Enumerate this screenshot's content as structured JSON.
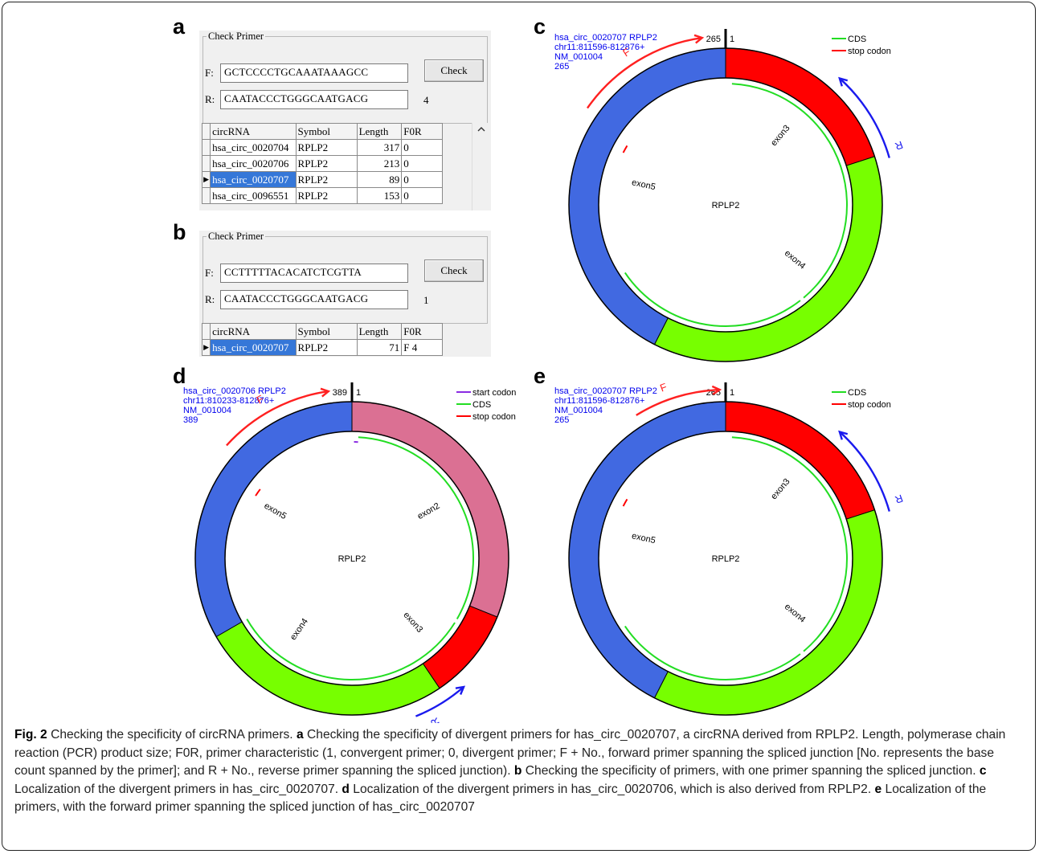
{
  "panels": {
    "a": "a",
    "b": "b",
    "c": "c",
    "d": "d",
    "e": "e"
  },
  "check_primer": {
    "group_title": "Check Primer",
    "forward_label": "F:",
    "reverse_label": "R:",
    "check_button": "Check",
    "columns": [
      "circRNA",
      "Symbol",
      "Length",
      "F0R"
    ]
  },
  "panel_a": {
    "forward_seq": "GCTCCCCTGCAAATAAAGCC",
    "reverse_seq": "CAATACCCTGGGCAATGACG",
    "hit_count": "4",
    "rows": [
      {
        "circ": "hsa_circ_0020704",
        "symbol": "RPLP2",
        "length": "317",
        "f0r": "0",
        "selected": false
      },
      {
        "circ": "hsa_circ_0020706",
        "symbol": "RPLP2",
        "length": "213",
        "f0r": "0",
        "selected": false
      },
      {
        "circ": "hsa_circ_0020707",
        "symbol": "RPLP2",
        "length": "89",
        "f0r": "0",
        "selected": true
      },
      {
        "circ": "hsa_circ_0096551",
        "symbol": "RPLP2",
        "length": "153",
        "f0r": "0",
        "selected": false
      }
    ]
  },
  "panel_b": {
    "forward_seq": "CCTTTTTACACATCTCGTTA",
    "reverse_seq": "CAATACCCTGGGCAATGACG",
    "hit_count": "1",
    "rows": [
      {
        "circ": "hsa_circ_0020707",
        "symbol": "RPLP2",
        "length": "71",
        "f0r": "F 4",
        "selected": true
      }
    ]
  },
  "circles": {
    "c": {
      "info": [
        "hsa_circ_0020707  RPLP2",
        "chr11:811596-812876+",
        "NM_001004",
        "265"
      ],
      "start_label": "265",
      "end_label": "1",
      "center": "RPLP2",
      "legend": [
        {
          "label": "CDS",
          "color": "#22dd22"
        },
        {
          "label": "stop codon",
          "color": "#ff0000"
        }
      ],
      "exons": [
        {
          "name": "exon3",
          "color": "#ff0000"
        },
        {
          "name": "exon4",
          "color": "#77ff00"
        },
        {
          "name": "exon5",
          "color": "#4169e1"
        }
      ],
      "primer_f": "F",
      "primer_r": "R"
    },
    "d": {
      "info": [
        "hsa_circ_0020706  RPLP2",
        "chr11:810233-812876+",
        "NM_001004",
        "389"
      ],
      "start_label": "389",
      "end_label": "1",
      "center": "RPLP2",
      "legend": [
        {
          "label": "start codon",
          "color": "#8a2be2"
        },
        {
          "label": "CDS",
          "color": "#22dd22"
        },
        {
          "label": "stop codon",
          "color": "#ff0000"
        }
      ],
      "exons": [
        {
          "name": "exon2",
          "color": "#db7093"
        },
        {
          "name": "exon3",
          "color": "#ff0000"
        },
        {
          "name": "exon4",
          "color": "#77ff00"
        },
        {
          "name": "exon5",
          "color": "#4169e1"
        }
      ],
      "primer_f": "F",
      "primer_r": "R"
    },
    "e": {
      "info": [
        "hsa_circ_0020707  RPLP2",
        "chr11:811596-812876+",
        "NM_001004",
        "265"
      ],
      "start_label": "265",
      "end_label": "1",
      "center": "RPLP2",
      "legend": [
        {
          "label": "CDS",
          "color": "#22dd22"
        },
        {
          "label": "stop codon",
          "color": "#ff0000"
        }
      ],
      "exons": [
        {
          "name": "exon3",
          "color": "#ff0000"
        },
        {
          "name": "exon4",
          "color": "#77ff00"
        },
        {
          "name": "exon5",
          "color": "#4169e1"
        }
      ],
      "primer_f": "F",
      "primer_r": "R"
    }
  },
  "caption": {
    "fig": "Fig. 2",
    "title": " Checking the specificity of circRNA primers. ",
    "a_label": "a",
    "a_text": " Checking the specificity of divergent primers for has_circ_0020707, a circRNA derived from RPLP2. Length, polymerase chain reaction (PCR) product size; F0R, primer characteristic (1, convergent primer; 0, divergent primer; F + No., forward primer spanning the spliced junction [No. represents the base count spanned by the primer]; and R + No., reverse primer spanning the spliced junction). ",
    "b_label": "b",
    "b_text": " Checking the specificity of primers, with one primer spanning the spliced junction. ",
    "c_label": "c",
    "c_text": " Localization of the divergent primers in has_circ_0020707. ",
    "d_label": "d",
    "d_text": " Localization of the divergent primers in has_circ_0020706, which is also derived from RPLP2. ",
    "e_label": "e",
    "e_text": " Localization of the primers, with the forward primer spanning the spliced junction of has_circ_0020707"
  }
}
